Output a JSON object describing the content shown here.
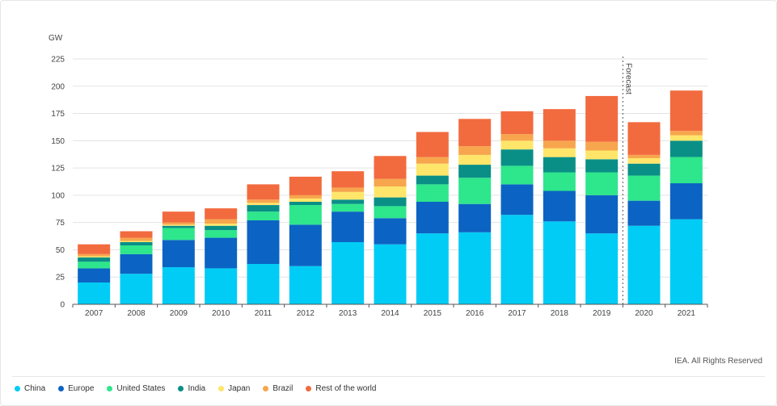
{
  "chart_data": {
    "type": "bar",
    "stacked": true,
    "unit_label": "GW",
    "ylim": [
      0,
      225
    ],
    "yticks": [
      0,
      25,
      50,
      75,
      100,
      125,
      150,
      175,
      200,
      225
    ],
    "categories": [
      "2007",
      "2008",
      "2009",
      "2010",
      "2011",
      "2012",
      "2013",
      "2014",
      "2015",
      "2016",
      "2017",
      "2018",
      "2019",
      "2020",
      "2021"
    ],
    "series": [
      {
        "name": "China",
        "color": "#00ccf5",
        "values": [
          20,
          28,
          34,
          33,
          37,
          35,
          57,
          55,
          65,
          66,
          82,
          76,
          65,
          72,
          78
        ]
      },
      {
        "name": "Europe",
        "color": "#0b64c3",
        "values": [
          13,
          18,
          25,
          28,
          40,
          38,
          28,
          24,
          29,
          26,
          28,
          28,
          35,
          23,
          33
        ]
      },
      {
        "name": "United States",
        "color": "#2ee68c",
        "values": [
          6,
          8,
          11,
          7,
          8,
          18,
          7,
          11,
          16,
          24,
          17,
          17,
          21,
          23,
          24
        ]
      },
      {
        "name": "India",
        "color": "#0a8f87",
        "values": [
          4,
          3,
          2,
          4,
          6,
          3,
          4,
          8,
          8,
          12,
          15,
          14,
          12,
          11,
          15
        ]
      },
      {
        "name": "Japan",
        "color": "#ffe66b",
        "values": [
          1,
          1,
          1,
          2,
          2,
          3,
          7,
          10,
          11,
          9,
          8,
          8,
          8,
          5,
          5
        ]
      },
      {
        "name": "Brazil",
        "color": "#f7a64d",
        "values": [
          2,
          3,
          2,
          4,
          3,
          3,
          4,
          7,
          6,
          8,
          6,
          7,
          8,
          3,
          4
        ]
      },
      {
        "name": "Rest of the world",
        "color": "#f26b3f",
        "values": [
          9,
          6,
          10,
          10,
          14,
          17,
          15,
          21,
          23,
          25,
          21,
          29,
          42,
          30,
          37
        ]
      }
    ],
    "annotation": {
      "label": "Forecast",
      "after_category": "2019"
    },
    "grid": true,
    "legend": "bottom-left"
  },
  "footer": {
    "credit": "IEA. All Rights Reserved"
  }
}
